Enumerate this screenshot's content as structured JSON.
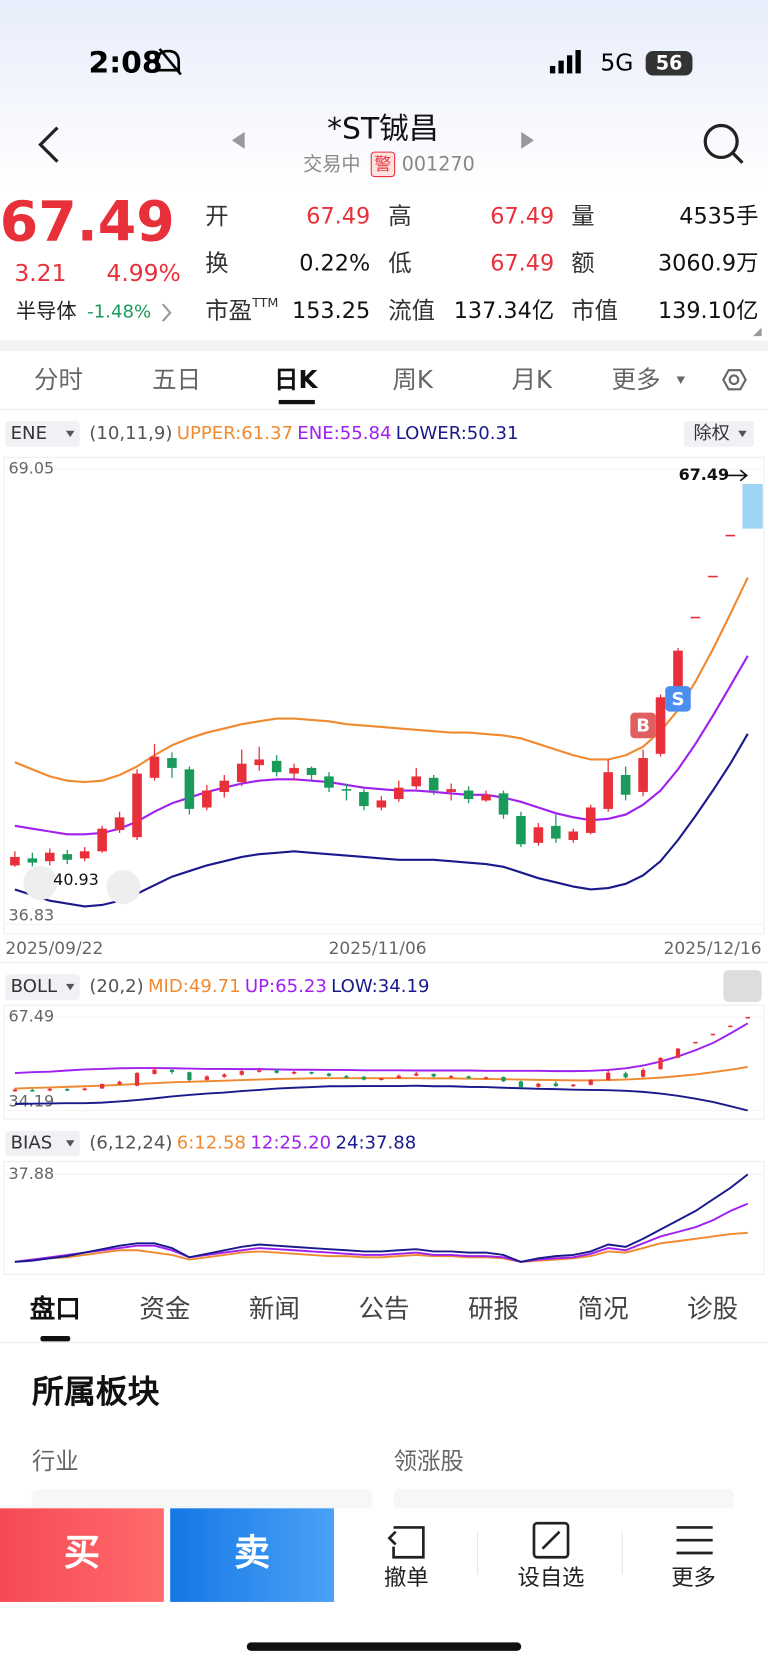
{
  "status_bar": {
    "time": "2:08",
    "network": "5G",
    "battery": "56"
  },
  "header": {
    "title": "*ST铖昌",
    "state": "交易中",
    "badge": "警",
    "code": "001270"
  },
  "quote": {
    "price": "67.49",
    "change": "3.21",
    "change_pct": "4.99%",
    "sector": "半导体",
    "sector_change": "-1.48%",
    "pe_suffix": "TTM",
    "fields": [
      {
        "label": "开",
        "value": "67.49"
      },
      {
        "label": "高",
        "value": "67.49"
      },
      {
        "label": "量",
        "value": "4535手"
      },
      {
        "label": "换",
        "value": "0.22%"
      },
      {
        "label": "低",
        "value": "67.49"
      },
      {
        "label": "额",
        "value": "3060.9万"
      },
      {
        "label": "市盈",
        "value": "153.25"
      },
      {
        "label": "流值",
        "value": "137.34亿"
      },
      {
        "label": "市值",
        "value": "139.10亿"
      }
    ]
  },
  "period_tabs": [
    "分时",
    "五日",
    "日K",
    "周K",
    "月K",
    "更多"
  ],
  "kline": {
    "type": "candlestick",
    "indicator": "ENE",
    "params": "(10,11,9)",
    "adjust": "除权",
    "ylim": [
      36.83,
      69.05
    ],
    "yticks": [
      36.83,
      69.05
    ],
    "x_labels": [
      "2025/09/22",
      "2025/11/06",
      "2025/12/16"
    ],
    "last_price_tag": "67.49",
    "low_label": "40.93",
    "signals": [
      "B",
      "S"
    ],
    "up_color": "#e8303a",
    "down_color": "#1a9b5c",
    "open": [
      41.0,
      41.5,
      41.3,
      41.8,
      41.5,
      42.0,
      43.5,
      43.0,
      47.2,
      48.6,
      47.8,
      45.1,
      46.2,
      46.9,
      48.1,
      48.4,
      47.5,
      47.9,
      47.3,
      46.4,
      46.2,
      45.1,
      45.7,
      46.6,
      47.2,
      46.2,
      46.3,
      45.6,
      46.1,
      44.5,
      42.6,
      43.8,
      42.8,
      43.3,
      45.0,
      47.4,
      46.2,
      48.9,
      53.0,
      58.6,
      61.5,
      64.4,
      67.49
    ],
    "high": [
      42.0,
      41.9,
      42.2,
      42.1,
      42.3,
      43.8,
      44.8,
      47.8,
      49.6,
      49.0,
      48.0,
      46.7,
      47.4,
      49.2,
      49.4,
      48.8,
      48.2,
      48.0,
      47.6,
      46.8,
      46.4,
      45.9,
      47.0,
      47.9,
      47.4,
      46.8,
      46.6,
      46.3,
      46.3,
      44.8,
      44.0,
      44.6,
      43.6,
      45.3,
      48.5,
      48.0,
      49.2,
      53.1,
      56.4,
      58.6,
      61.5,
      64.4,
      67.49
    ],
    "low": [
      40.9,
      40.93,
      41.0,
      41.1,
      41.3,
      41.9,
      43.3,
      42.8,
      47.0,
      47.2,
      44.6,
      44.9,
      45.8,
      46.6,
      47.7,
      47.3,
      47.0,
      47.0,
      46.2,
      45.6,
      44.9,
      44.9,
      45.5,
      46.4,
      46.0,
      45.6,
      45.4,
      45.5,
      44.3,
      42.3,
      42.4,
      42.6,
      42.6,
      43.2,
      44.8,
      45.6,
      45.9,
      48.7,
      52.8,
      58.6,
      61.5,
      64.4,
      67.49
    ],
    "close": [
      41.6,
      41.2,
      41.9,
      41.4,
      42.0,
      43.6,
      44.4,
      47.5,
      48.7,
      47.9,
      45.0,
      46.3,
      47.0,
      48.2,
      48.5,
      47.6,
      47.9,
      47.4,
      46.5,
      46.3,
      45.2,
      45.6,
      46.5,
      47.3,
      46.3,
      46.4,
      45.7,
      46.0,
      44.6,
      42.5,
      43.7,
      42.9,
      43.4,
      45.1,
      47.6,
      46.0,
      48.6,
      52.9,
      56.2,
      58.6,
      61.5,
      64.4,
      67.49
    ],
    "series": [
      {
        "name": "UPPER:61.37",
        "color": "#f08a30",
        "values": [
          48.3,
          47.8,
          47.3,
          47.0,
          46.9,
          47.0,
          47.4,
          48.0,
          48.8,
          49.5,
          50.0,
          50.4,
          50.7,
          51.0,
          51.2,
          51.4,
          51.4,
          51.3,
          51.2,
          51.0,
          50.9,
          50.8,
          50.7,
          50.6,
          50.5,
          50.4,
          50.4,
          50.3,
          50.2,
          50.0,
          49.6,
          49.2,
          48.8,
          48.5,
          48.5,
          48.8,
          49.4,
          50.5,
          52.0,
          54.0,
          56.3,
          58.8,
          61.37
        ]
      },
      {
        "name": "ENE:55.84",
        "color": "#a020f0",
        "values": [
          43.8,
          43.6,
          43.4,
          43.2,
          43.2,
          43.3,
          43.6,
          44.1,
          44.8,
          45.4,
          45.8,
          46.2,
          46.5,
          46.8,
          47.0,
          47.1,
          47.1,
          47.0,
          46.9,
          46.7,
          46.5,
          46.4,
          46.3,
          46.3,
          46.2,
          46.1,
          46.0,
          46.0,
          45.8,
          45.5,
          45.1,
          44.7,
          44.4,
          44.2,
          44.3,
          44.6,
          45.3,
          46.3,
          47.8,
          49.6,
          51.6,
          53.7,
          55.84
        ]
      },
      {
        "name": "LOWER:50.31",
        "color": "#1a1a8c",
        "values": [
          39.3,
          38.9,
          38.5,
          38.3,
          38.1,
          38.2,
          38.5,
          39.0,
          39.6,
          40.2,
          40.6,
          41.0,
          41.3,
          41.6,
          41.8,
          41.9,
          42.0,
          41.9,
          41.8,
          41.7,
          41.6,
          41.5,
          41.4,
          41.4,
          41.4,
          41.3,
          41.2,
          41.1,
          40.9,
          40.5,
          40.1,
          39.8,
          39.5,
          39.3,
          39.4,
          39.7,
          40.3,
          41.3,
          42.8,
          44.5,
          46.3,
          48.2,
          50.31
        ]
      }
    ]
  },
  "boll": {
    "type": "line",
    "indicator": "BOLL",
    "params": "(20,2)",
    "ylim": [
      34.19,
      67.49
    ],
    "yticks": [
      34.19,
      67.49
    ],
    "series": [
      {
        "name": "MID:49.71",
        "color": "#f08a30",
        "values": [
          42.0,
          42.2,
          42.4,
          42.6,
          42.8,
          43.0,
          43.3,
          43.6,
          43.9,
          44.2,
          44.4,
          44.6,
          44.8,
          45.0,
          45.2,
          45.4,
          45.5,
          45.6,
          45.7,
          45.7,
          45.7,
          45.7,
          45.7,
          45.7,
          45.6,
          45.6,
          45.5,
          45.4,
          45.3,
          45.2,
          45.1,
          45.0,
          44.9,
          44.9,
          45.0,
          45.2,
          45.5,
          45.9,
          46.4,
          47.0,
          47.8,
          48.7,
          49.71
        ]
      },
      {
        "name": "UP:65.23",
        "color": "#a020f0",
        "values": [
          47.5,
          47.8,
          48.0,
          48.4,
          48.8,
          49.0,
          49.2,
          49.3,
          49.3,
          49.2,
          49.1,
          49.0,
          49.0,
          48.9,
          48.9,
          48.8,
          48.7,
          48.7,
          48.6,
          48.6,
          48.5,
          48.5,
          48.5,
          48.4,
          48.4,
          48.4,
          48.4,
          48.3,
          48.3,
          48.3,
          48.3,
          48.2,
          48.2,
          48.3,
          48.6,
          49.2,
          50.2,
          51.6,
          53.4,
          55.6,
          58.2,
          61.6,
          65.23
        ]
      },
      {
        "name": "LOW:34.19",
        "color": "#1a1a8c",
        "values": [
          36.5,
          36.6,
          36.7,
          36.8,
          36.8,
          37.0,
          37.4,
          37.9,
          38.5,
          39.2,
          39.7,
          40.2,
          40.6,
          41.1,
          41.5,
          42.0,
          42.3,
          42.5,
          42.8,
          42.8,
          42.9,
          42.9,
          42.9,
          43.0,
          42.8,
          42.8,
          42.6,
          42.5,
          42.3,
          42.1,
          41.9,
          41.8,
          41.6,
          41.5,
          41.4,
          41.2,
          40.8,
          40.2,
          39.4,
          38.4,
          37.2,
          35.7,
          34.19
        ]
      }
    ]
  },
  "bias": {
    "type": "line",
    "indicator": "BIAS",
    "params": "(6,12,24)",
    "ylim": [
      -4,
      37.88
    ],
    "yticks": [
      37.88
    ],
    "series": [
      {
        "name": "6:12.58",
        "color": "#f08a30",
        "values": [
          0,
          1,
          1.5,
          2,
          3,
          4,
          5,
          5,
          4,
          3,
          1,
          2,
          3,
          4,
          4.5,
          4,
          3.5,
          3,
          2.5,
          2.5,
          2,
          2,
          2.5,
          3,
          2.5,
          2.5,
          2,
          2,
          1.5,
          0,
          0.5,
          1,
          1.5,
          2.5,
          4.5,
          4,
          6,
          8,
          9,
          10,
          11,
          12,
          12.58
        ]
      },
      {
        "name": "12:25.20",
        "color": "#a020f0",
        "values": [
          0,
          1,
          2,
          3,
          4,
          5,
          6,
          7,
          7,
          5,
          2,
          3,
          4,
          5,
          6,
          5.5,
          5,
          4.5,
          4,
          3.5,
          3,
          3,
          3.5,
          4,
          3,
          3,
          2.5,
          2.5,
          2,
          0,
          1,
          1.5,
          2,
          3.5,
          6,
          5,
          8,
          11,
          13,
          15,
          18,
          22,
          25.2
        ]
      },
      {
        "name": "24:37.88",
        "color": "#1a1a8c",
        "values": [
          0,
          0.5,
          1.5,
          2.5,
          4,
          5.5,
          7,
          8,
          8,
          6,
          2,
          3.5,
          5,
          6.5,
          7.5,
          7,
          6.5,
          6,
          5.5,
          5,
          4.5,
          4.5,
          5,
          5.5,
          4.5,
          4.5,
          4,
          4,
          3,
          0,
          1.5,
          2.5,
          3,
          4.5,
          7.5,
          6.5,
          10,
          14,
          18,
          22,
          27,
          32,
          37.88
        ]
      }
    ]
  },
  "detail_tabs": [
    "盘口",
    "资金",
    "新闻",
    "公告",
    "研报",
    "简况",
    "诊股"
  ],
  "section": {
    "title": "所属板块",
    "columns": [
      "行业",
      "领涨股"
    ]
  },
  "actions": {
    "buy": "买",
    "sell": "卖",
    "items": [
      "撤单",
      "设自选",
      "更多"
    ]
  }
}
